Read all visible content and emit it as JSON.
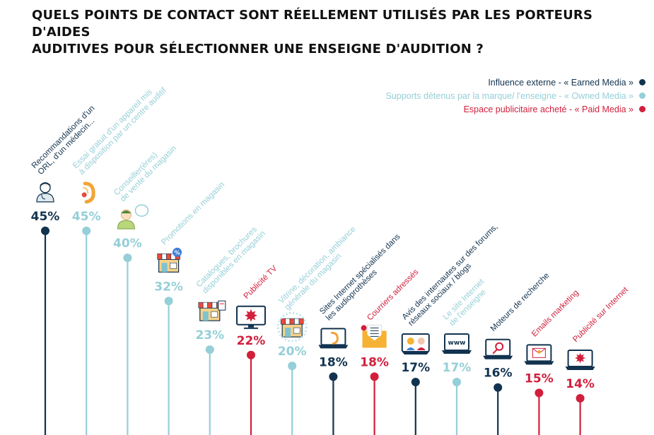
{
  "title": {
    "line1": "QUELS POINTS DE CONTACT SONT RÉELLEMENT UTILISÉS PAR LES PORTEURS D'AIDES",
    "line2": "AUDITIVES POUR SÉLECTIONNER UNE ENSEIGNE D'AUDITION ?"
  },
  "colors": {
    "earned": "#12334f",
    "owned": "#95cfd7",
    "paid": "#d11f3c"
  },
  "legend": [
    {
      "label": "Influence externe - « Earned Media »",
      "type": "earned"
    },
    {
      "label": "Supports détenus par la marque/ l'enseigne - « Owned Media »",
      "type": "owned"
    },
    {
      "label": "Espace publicitaire acheté - « Paid Media »",
      "type": "paid"
    }
  ],
  "chart_data": {
    "type": "lollipop",
    "ylim": [
      0,
      45
    ],
    "categories": [
      {
        "label": [
          "Recommandations d'un",
          "ORL, d'un médecin..."
        ],
        "value": 45,
        "display": "45%",
        "type": "earned",
        "icon": "doctor-icon"
      },
      {
        "label": [
          "Essai gratuit d'un appareil mis",
          "à disposition par un centre auditif"
        ],
        "value": 45,
        "display": "45%",
        "type": "owned",
        "icon": "hearing-aid-icon"
      },
      {
        "label": [
          "Conseiller(ères)",
          "de vente du magasin"
        ],
        "value": 40,
        "display": "40%",
        "type": "owned",
        "icon": "advisor-icon"
      },
      {
        "label": [
          "Promotions en magasin"
        ],
        "value": 32,
        "display": "32%",
        "type": "owned",
        "icon": "store-promo-icon"
      },
      {
        "label": [
          "Catalogues, brochures",
          "disponibles en magasin"
        ],
        "value": 23,
        "display": "23%",
        "type": "owned",
        "icon": "store-catalog-icon"
      },
      {
        "label": [
          "Publicité TV"
        ],
        "value": 22,
        "display": "22%",
        "type": "paid",
        "icon": "tv-icon"
      },
      {
        "label": [
          "Vitrine, décoration, ambiance",
          "générale du magasin"
        ],
        "value": 20,
        "display": "20%",
        "type": "owned",
        "icon": "storefront-icon"
      },
      {
        "label": [
          "Sites Internet spécialisés dans",
          "les audioprothèses"
        ],
        "value": 18,
        "display": "18%",
        "type": "earned",
        "icon": "laptop-ear-icon"
      },
      {
        "label": [
          "Courriers adressés"
        ],
        "value": 18,
        "display": "18%",
        "type": "paid",
        "icon": "mail-icon"
      },
      {
        "label": [
          "Avis des internautes sur des forums,",
          "réseaux sociaux / blogs"
        ],
        "value": 17,
        "display": "17%",
        "type": "earned",
        "icon": "social-icon"
      },
      {
        "label": [
          "Le site Internet",
          "de l'enseigne"
        ],
        "value": 17,
        "display": "17%",
        "type": "owned",
        "icon": "www-icon"
      },
      {
        "label": [
          "Moteurs de recherche"
        ],
        "value": 16,
        "display": "16%",
        "type": "earned",
        "icon": "search-engine-icon"
      },
      {
        "label": [
          "Emails marketing"
        ],
        "value": 15,
        "display": "15%",
        "type": "paid",
        "icon": "email-icon"
      },
      {
        "label": [
          "Publicité sur Internet"
        ],
        "value": 14,
        "display": "14%",
        "type": "paid",
        "icon": "web-ad-icon"
      }
    ]
  }
}
